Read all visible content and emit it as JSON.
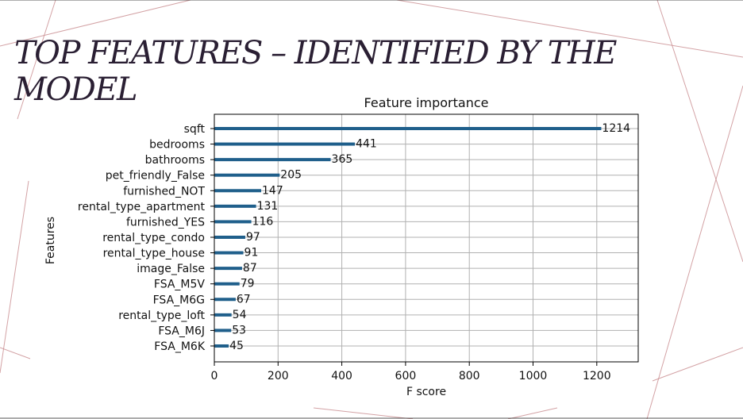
{
  "slide": {
    "title": "TOP  FEATURES – IDENTIFIED BY THE MODEL"
  },
  "colors": {
    "bar": "#1f5f8b",
    "grid": "#b0b0b0",
    "axis": "#000000",
    "deco_line": "#c98c8f",
    "title_text": "#2a1f33"
  },
  "chart_data": {
    "type": "bar",
    "orientation": "horizontal",
    "title": "Feature importance",
    "xlabel": "F score",
    "ylabel": "Features",
    "xlim": [
      0,
      1330
    ],
    "xticks": [
      0,
      200,
      400,
      600,
      800,
      1000,
      1200
    ],
    "grid": true,
    "categories": [
      "sqft",
      "bedrooms",
      "bathrooms",
      "pet_friendly_False",
      "furnished_NOT",
      "rental_type_apartment",
      "furnished_YES",
      "rental_type_condo",
      "rental_type_house",
      "image_False",
      "FSA_M5V",
      "FSA_M6G",
      "rental_type_loft",
      "FSA_M6J",
      "FSA_M6K"
    ],
    "values": [
      1214,
      441,
      365,
      205,
      147,
      131,
      116,
      97,
      91,
      87,
      79,
      67,
      54,
      53,
      45
    ]
  }
}
